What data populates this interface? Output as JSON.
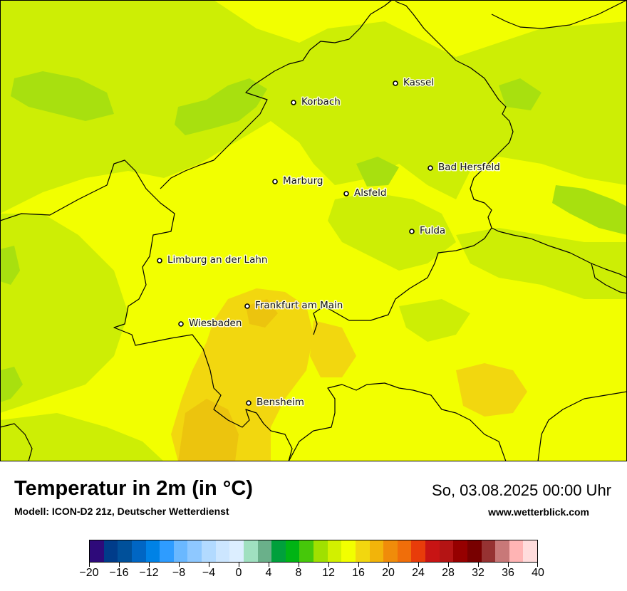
{
  "map": {
    "description_colors": {
      "base": "#f2ff00",
      "light_green": "#cdee05",
      "green": "#a8e00f",
      "orange": "#f2d70f",
      "deep_orange": "#ecc40e",
      "border": "#000000"
    },
    "cities": [
      {
        "name": "Kassel"
      },
      {
        "name": "Korbach"
      },
      {
        "name": "Bad Hersfeld"
      },
      {
        "name": "Marburg"
      },
      {
        "name": "Alsfeld"
      },
      {
        "name": "Fulda"
      },
      {
        "name": "Limburg an der Lahn"
      },
      {
        "name": "Frankfurt am Main"
      },
      {
        "name": "Wiesbaden"
      },
      {
        "name": "Bensheim"
      }
    ]
  },
  "header": {
    "title": "Temperatur in 2m (in °C)",
    "subtitle": "Modell: ICON-D2 21z, Deutscher Wetterdienst",
    "datetime": "So, 03.08.2025 00:00 Uhr",
    "website": "www.wetterblick.com"
  },
  "legend": {
    "colors": [
      "#2e0a7a",
      "#003c8a",
      "#00509a",
      "#0066c4",
      "#0082e6",
      "#2e9cff",
      "#6ab8ff",
      "#8ec8ff",
      "#b2daff",
      "#cce6ff",
      "#dceeff",
      "#a0e0c0",
      "#6ab08a",
      "#00a03c",
      "#00b414",
      "#46c80a",
      "#a0e000",
      "#d2f000",
      "#f2ff00",
      "#f2d70f",
      "#f2b40a",
      "#f08c0a",
      "#f06e0a",
      "#e83c0a",
      "#c81414",
      "#b41414",
      "#960000",
      "#780000",
      "#963232",
      "#c87878",
      "#ffb4b4",
      "#ffdcdc"
    ],
    "tick_labels": [
      "−20",
      "−16",
      "−12",
      "−8",
      "−4",
      "0",
      "4",
      "8",
      "12",
      "16",
      "20",
      "24",
      "28",
      "32",
      "36",
      "40"
    ]
  }
}
